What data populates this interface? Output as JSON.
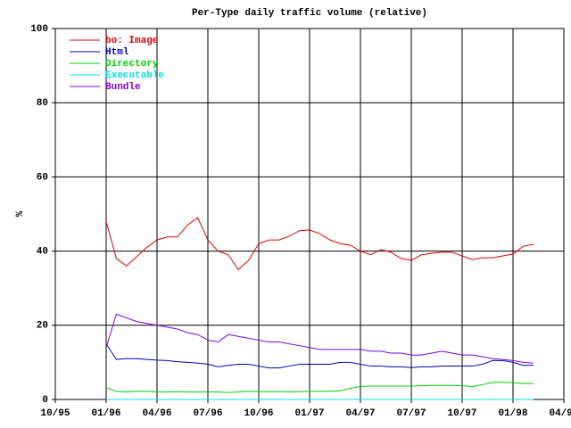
{
  "chart_data": {
    "type": "line",
    "title": "Per-Type daily traffic volume (relative)",
    "y_label": "%",
    "xlim": [
      1995.75,
      1998.25
    ],
    "xticks": [
      {
        "value": 1995.75,
        "label": "10/95"
      },
      {
        "value": 1996.0,
        "label": "01/96"
      },
      {
        "value": 1996.25,
        "label": "04/96"
      },
      {
        "value": 1996.5,
        "label": "07/96"
      },
      {
        "value": 1996.75,
        "label": "10/96"
      },
      {
        "value": 1997.0,
        "label": "01/97"
      },
      {
        "value": 1997.25,
        "label": "04/97"
      },
      {
        "value": 1997.5,
        "label": "07/97"
      },
      {
        "value": 1997.75,
        "label": "10/97"
      },
      {
        "value": 1998.0,
        "label": "01/98"
      },
      {
        "value": 1998.25,
        "label": "04/98"
      }
    ],
    "ylim": [
      0,
      100
    ],
    "yticks": [
      0,
      20,
      40,
      60,
      80,
      100
    ],
    "grid": true,
    "legend": "top-left",
    "x": [
      1996.0,
      1996.05,
      1996.1,
      1996.15,
      1996.2,
      1996.25,
      1996.3,
      1996.35,
      1996.4,
      1996.45,
      1996.5,
      1996.55,
      1996.6,
      1996.65,
      1996.7,
      1996.75,
      1996.8,
      1996.85,
      1996.9,
      1996.95,
      1997.0,
      1997.05,
      1997.1,
      1997.15,
      1997.2,
      1997.25,
      1997.3,
      1997.35,
      1997.4,
      1997.45,
      1997.5,
      1997.55,
      1997.6,
      1997.65,
      1997.7,
      1997.75,
      1997.8,
      1997.85,
      1997.9,
      1997.95,
      1998.0,
      1998.05,
      1998.1
    ],
    "series": [
      {
        "name": "bo: Image",
        "color": "#e00000",
        "values": [
          48,
          38,
          36,
          38.5,
          41,
          43,
          43.8,
          43.8,
          47,
          49,
          43,
          40,
          39,
          35,
          37.5,
          42,
          43,
          43,
          44,
          45.5,
          45.7,
          44.7,
          43,
          42,
          41.6,
          40,
          39,
          40.4,
          39.7,
          38,
          37.5,
          39,
          39.4,
          39.7,
          39.7,
          38.7,
          37.7,
          38.2,
          38.2,
          38.7,
          39.2,
          41.3,
          41.8
        ]
      },
      {
        "name": "Html",
        "color": "#0000c0",
        "values": [
          15,
          10.8,
          11,
          11,
          10.8,
          10.6,
          10.5,
          10.2,
          10,
          9.8,
          9.5,
          8.8,
          9.2,
          9.5,
          9.5,
          9,
          8.5,
          8.5,
          9,
          9.5,
          9.5,
          9.5,
          9.5,
          10,
          10,
          9.5,
          9,
          9,
          8.8,
          8.8,
          8.6,
          8.8,
          8.8,
          9,
          9,
          9,
          9,
          9.5,
          10.5,
          10.5,
          10,
          9.2,
          9.2
        ]
      },
      {
        "name": "Directory",
        "color": "#00d000",
        "values": [
          3.2,
          2.2,
          2,
          2.2,
          2.2,
          2,
          2,
          2.1,
          2,
          2,
          2,
          2,
          1.9,
          2,
          2.2,
          2.1,
          2.1,
          2.1,
          2,
          2.1,
          2.2,
          2.2,
          2.2,
          2.3,
          3,
          3.5,
          3.6,
          3.6,
          3.6,
          3.6,
          3.6,
          3.7,
          3.8,
          3.8,
          3.8,
          3.7,
          3.5,
          4,
          4.6,
          4.6,
          4.5,
          4.3,
          4.3
        ]
      },
      {
        "name": "Executable",
        "color": "#00e0e0",
        "values": [
          0,
          0,
          0,
          0,
          0,
          0,
          0,
          0,
          0,
          0,
          0,
          0,
          0,
          0,
          0,
          0,
          0,
          0,
          0,
          0,
          0,
          0,
          0,
          0,
          0,
          0,
          0,
          0,
          0,
          0,
          0,
          0,
          0,
          0,
          0,
          0,
          0,
          0,
          0,
          0,
          0,
          0,
          0
        ]
      },
      {
        "name": "Bundle",
        "color": "#8000e0",
        "values": [
          14,
          23,
          22,
          21,
          20.5,
          20,
          19.5,
          19,
          18,
          17.5,
          16,
          15.5,
          17.5,
          17,
          16.5,
          16,
          15.5,
          15.5,
          15,
          14.5,
          14,
          13.5,
          13.5,
          13.5,
          13.5,
          13.5,
          13,
          13,
          12.5,
          12.5,
          12,
          12,
          12.5,
          13,
          12.5,
          12,
          12,
          11.5,
          11,
          10.8,
          10.5,
          10,
          9.8
        ]
      }
    ]
  }
}
